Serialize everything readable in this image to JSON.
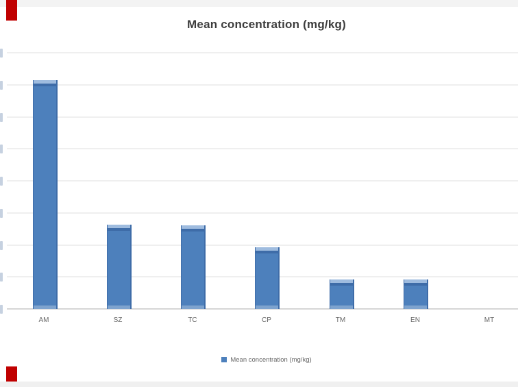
{
  "page": {
    "background": "#ffffff",
    "top_band_color": "#f3f3f3",
    "bottom_band_color": "#f0f0f0",
    "red_artifact_color": "#c00000"
  },
  "chart": {
    "title_color": "#3d3d3d",
    "label_color": "#666666",
    "grid_color": "#efefef",
    "axis_color": "#d6d6d6",
    "bar_fill": "#4d80bc",
    "bar_edge_dark": "#3e6ca8",
    "bar_cap_light": "#9fbcdf",
    "tick_fragment_color": "#c6d1e0"
  },
  "chart_data": {
    "type": "bar",
    "title": "Mean concentration (mg/kg)",
    "series_name": "Mean concentration (mg/kg)",
    "categories": [
      "AM",
      "SZ",
      "TC",
      "CP",
      "TM",
      "EN",
      "MT"
    ],
    "values": [
      7.15,
      2.63,
      2.6,
      1.93,
      0.92,
      0.92,
      0
    ],
    "xlabel": "",
    "ylabel": "",
    "ylim": [
      0,
      8
    ],
    "y_tick_count": 9,
    "y_tick_labels": "clipped off left edge of screenshot (not readable)",
    "grid": true,
    "legend_position": "bottom"
  }
}
